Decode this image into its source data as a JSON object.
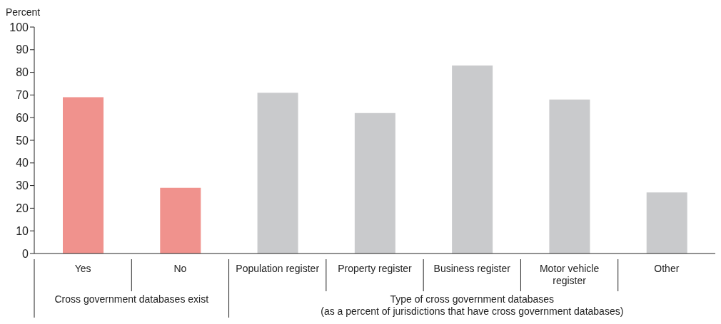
{
  "chart_data": {
    "type": "bar",
    "ylabel": "Percent",
    "categories": [
      "Yes",
      "No",
      "Population register",
      "Property register",
      "Business register",
      "Motor vehicle register",
      "Other"
    ],
    "values": [
      69,
      29,
      71,
      62,
      83,
      68,
      27
    ],
    "colors": [
      "#f0928d",
      "#f0928d",
      "#c9cacc",
      "#c9cacc",
      "#c9cacc",
      "#c9cacc",
      "#c9cacc"
    ],
    "ylim": [
      0,
      100
    ],
    "yticks": [
      0,
      10,
      20,
      30,
      40,
      50,
      60,
      70,
      80,
      90,
      100
    ],
    "grid": false,
    "legend": false,
    "annotations": [
      "Cross government databases exist",
      "Type of cross government databases\n(as a percent of jurisdictions that have cross government databases)"
    ]
  }
}
